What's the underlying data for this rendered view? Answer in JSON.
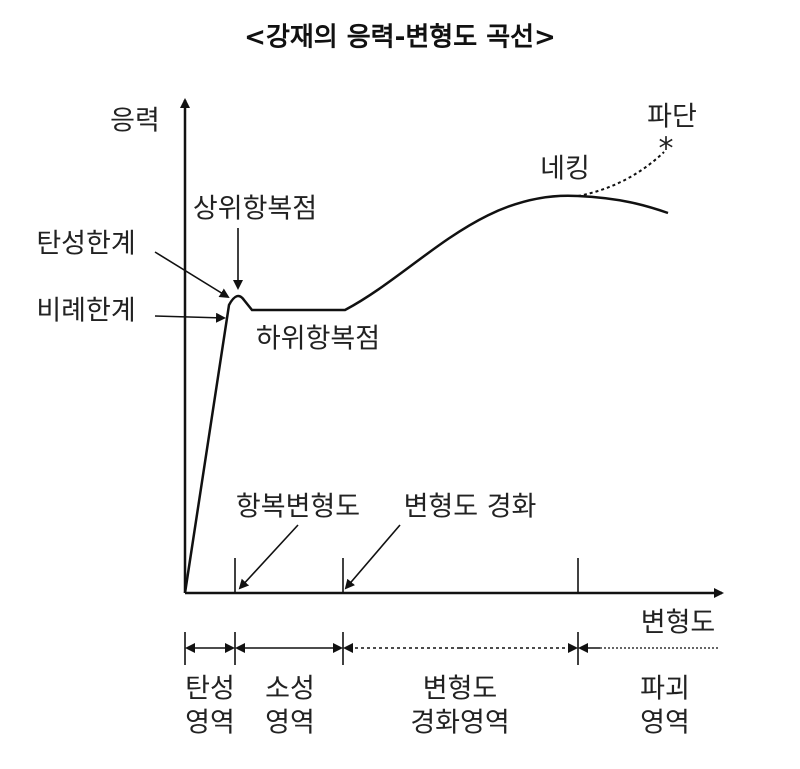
{
  "title": "<강재의 응력-변형도 곡선>",
  "axes": {
    "y_label": "응력",
    "x_label": "변형도"
  },
  "annotations": {
    "fracture": "파단",
    "necking": "네킹",
    "upper_yield": "상위항복점",
    "elastic_limit": "탄성한계",
    "proportional_limit": "비례한계",
    "lower_yield": "하위항복점",
    "yield_strain": "항복변형도",
    "strain_hardening": "변형도 경화"
  },
  "regions": [
    {
      "lines": [
        "탄성",
        "영역"
      ]
    },
    {
      "lines": [
        "소성",
        "영역"
      ]
    },
    {
      "lines": [
        "변형도",
        "경화영역"
      ]
    },
    {
      "lines": [
        "파괴",
        "영역"
      ]
    }
  ]
}
